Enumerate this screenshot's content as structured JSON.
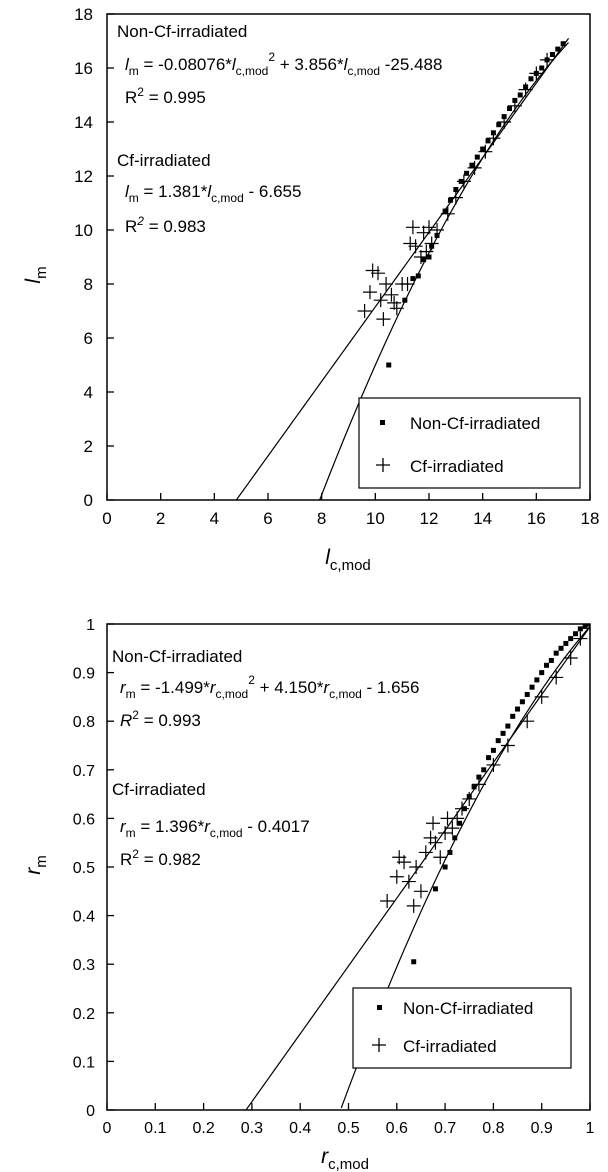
{
  "chart_data": [
    {
      "type": "scatter",
      "xlabel": {
        "main": "l",
        "sub": "c,mod"
      },
      "ylabel": {
        "main": "l",
        "sub": "m"
      },
      "xlim": [
        0,
        18
      ],
      "ylim": [
        0,
        18
      ],
      "xticks": [
        0,
        2,
        4,
        6,
        8,
        10,
        12,
        14,
        16,
        18
      ],
      "yticks": [
        0,
        2,
        4,
        6,
        8,
        10,
        12,
        14,
        16,
        18
      ],
      "xtick_labels": [
        "0",
        "2",
        "4",
        "6",
        "8",
        "10",
        "12",
        "14",
        "16",
        "18"
      ],
      "ytick_labels": [
        "0",
        "2",
        "4",
        "6",
        "8",
        "10",
        "12",
        "14",
        "16",
        "18"
      ],
      "grid": false,
      "legend": {
        "position": "bottom-right",
        "entries": [
          "Non-Cf-irradiated",
          "Cf-irradiated"
        ]
      },
      "annotations": {
        "group1_title": "Non-Cf-irradiated",
        "group1_eq_a": "l",
        "group1_eq_a_sub": "m",
        "group1_eq_b": " = -0.08076*",
        "group1_eq_c": "l",
        "group1_eq_c_sub": "c,mod",
        "group1_eq_d": "2",
        "group1_eq_e": " + 3.856*",
        "group1_eq_f": "l",
        "group1_eq_f_sub": "c,mod",
        "group1_eq_g": " -25.488",
        "group1_r2": "R",
        "group1_r2_sup": "2",
        "group1_r2_val": " = 0.995",
        "group2_title": "Cf-irradiated",
        "group2_eq_a": "l",
        "group2_eq_a_sub": "m",
        "group2_eq_b": " = 1.381*",
        "group2_eq_c": "l",
        "group2_eq_c_sub": "c,mod",
        "group2_eq_d": " - 6.655",
        "group2_r2": "R",
        "group2_r2_sup": "2",
        "group2_r2_val": " = 0.983"
      },
      "fit_lines": [
        {
          "series": "Non-Cf-irradiated",
          "model": "quadratic",
          "coefficients": [
            -0.08076,
            3.856,
            -25.488
          ],
          "x_range": [
            7.9,
            17.2
          ]
        },
        {
          "series": "Cf-irradiated",
          "model": "linear",
          "coefficients": [
            1.381,
            -6.655
          ],
          "x_range": [
            4.8,
            17.2
          ]
        }
      ],
      "series": [
        {
          "name": "Non-Cf-irradiated",
          "marker": "square",
          "points": [
            [
              10.5,
              5.0
            ],
            [
              11.1,
              7.4
            ],
            [
              11.4,
              8.2
            ],
            [
              11.6,
              8.3
            ],
            [
              11.8,
              8.9
            ],
            [
              12.0,
              9.0
            ],
            [
              12.1,
              9.4
            ],
            [
              12.3,
              9.8
            ],
            [
              12.6,
              10.7
            ],
            [
              12.8,
              11.1
            ],
            [
              13.0,
              11.5
            ],
            [
              13.2,
              11.8
            ],
            [
              13.4,
              12.1
            ],
            [
              13.6,
              12.4
            ],
            [
              13.8,
              12.7
            ],
            [
              14.0,
              13.0
            ],
            [
              14.2,
              13.3
            ],
            [
              14.4,
              13.6
            ],
            [
              14.6,
              13.9
            ],
            [
              14.8,
              14.2
            ],
            [
              15.0,
              14.5
            ],
            [
              15.2,
              14.8
            ],
            [
              15.4,
              15.0
            ],
            [
              15.6,
              15.3
            ],
            [
              15.8,
              15.6
            ],
            [
              16.0,
              15.8
            ],
            [
              16.2,
              16.0
            ],
            [
              16.4,
              16.3
            ],
            [
              16.6,
              16.5
            ],
            [
              16.8,
              16.7
            ],
            [
              17.0,
              16.9
            ]
          ]
        },
        {
          "name": "Cf-irradiated",
          "marker": "plus",
          "points": [
            [
              9.6,
              7.0
            ],
            [
              9.8,
              7.7
            ],
            [
              9.9,
              8.5
            ],
            [
              10.1,
              8.4
            ],
            [
              10.2,
              7.4
            ],
            [
              10.3,
              6.7
            ],
            [
              10.4,
              8.0
            ],
            [
              10.6,
              7.6
            ],
            [
              10.7,
              7.3
            ],
            [
              10.8,
              7.1
            ],
            [
              11.0,
              8.0
            ],
            [
              11.2,
              8.0
            ],
            [
              11.3,
              9.5
            ],
            [
              11.4,
              10.1
            ],
            [
              11.5,
              9.4
            ],
            [
              11.7,
              9.0
            ],
            [
              11.8,
              9.9
            ],
            [
              11.9,
              9.2
            ],
            [
              12.0,
              10.1
            ],
            [
              12.1,
              9.5
            ],
            [
              12.3,
              10.0
            ],
            [
              12.7,
              10.6
            ],
            [
              13.0,
              11.2
            ],
            [
              13.3,
              11.8
            ],
            [
              13.7,
              12.3
            ],
            [
              14.1,
              12.9
            ],
            [
              14.4,
              13.4
            ],
            [
              14.8,
              14.0
            ],
            [
              15.2,
              14.6
            ],
            [
              15.6,
              15.2
            ],
            [
              16.0,
              15.8
            ],
            [
              16.4,
              16.3
            ]
          ]
        }
      ]
    },
    {
      "type": "scatter",
      "xlabel": {
        "main": "r",
        "sub": "c,mod"
      },
      "ylabel": {
        "main": "r",
        "sub": "m"
      },
      "xlim": [
        0,
        1
      ],
      "ylim": [
        0,
        1
      ],
      "xticks": [
        0,
        0.1,
        0.2,
        0.3,
        0.4,
        0.5,
        0.6,
        0.7,
        0.8,
        0.9,
        1
      ],
      "yticks": [
        0,
        0.1,
        0.2,
        0.3,
        0.4,
        0.5,
        0.6,
        0.7,
        0.8,
        0.9,
        1
      ],
      "xtick_labels": [
        "0",
        "0.1",
        "0.2",
        "0.3",
        "0.4",
        "0.5",
        "0.6",
        "0.7",
        "0.8",
        "0.9",
        "1"
      ],
      "ytick_labels": [
        "0",
        "0.1",
        "0.2",
        "0.3",
        "0.4",
        "0.5",
        "0.6",
        "0.7",
        "0.8",
        "0.9",
        "1"
      ],
      "grid": false,
      "legend": {
        "position": "bottom-right",
        "entries": [
          "Non-Cf-irradiated",
          "Cf-irradiated"
        ]
      },
      "annotations": {
        "group1_title": "Non-Cf-irradiated",
        "group1_eq_a": "r",
        "group1_eq_a_sub": "m",
        "group1_eq_b": " = -1.499*",
        "group1_eq_c": "r",
        "group1_eq_c_sub": "c,mod",
        "group1_eq_d": "2",
        "group1_eq_e": " + 4.150*",
        "group1_eq_f": "r",
        "group1_eq_f_sub": "c,mod",
        "group1_eq_g": " - 1.656",
        "group1_r2": "R",
        "group1_r2_sup": "2",
        "group1_r2_val": " = 0.993",
        "group2_title": "Cf-irradiated",
        "group2_eq_a": "r",
        "group2_eq_a_sub": "m",
        "group2_eq_b": " = 1.396*",
        "group2_eq_c": "r",
        "group2_eq_c_sub": "c,mod",
        "group2_eq_d": " - 0.4017",
        "group2_r2": "R",
        "group2_r2_sup": "2",
        "group2_r2_val": " = 0.982"
      },
      "fit_lines": [
        {
          "series": "Non-Cf-irradiated",
          "model": "quadratic",
          "coefficients": [
            -1.499,
            4.15,
            -1.656
          ],
          "x_range": [
            0.485,
            1.01
          ]
        },
        {
          "series": "Cf-irradiated",
          "model": "linear",
          "coefficients": [
            1.396,
            -0.4017
          ],
          "x_range": [
            0.288,
            1.01
          ]
        }
      ],
      "series": [
        {
          "name": "Non-Cf-irradiated",
          "marker": "square",
          "points": [
            [
              0.635,
              0.305
            ],
            [
              0.68,
              0.455
            ],
            [
              0.7,
              0.5
            ],
            [
              0.71,
              0.53
            ],
            [
              0.72,
              0.56
            ],
            [
              0.73,
              0.59
            ],
            [
              0.74,
              0.62
            ],
            [
              0.75,
              0.645
            ],
            [
              0.76,
              0.665
            ],
            [
              0.77,
              0.685
            ],
            [
              0.78,
              0.7
            ],
            [
              0.79,
              0.725
            ],
            [
              0.8,
              0.74
            ],
            [
              0.81,
              0.76
            ],
            [
              0.82,
              0.775
            ],
            [
              0.83,
              0.79
            ],
            [
              0.84,
              0.81
            ],
            [
              0.85,
              0.825
            ],
            [
              0.86,
              0.84
            ],
            [
              0.87,
              0.855
            ],
            [
              0.88,
              0.87
            ],
            [
              0.89,
              0.885
            ],
            [
              0.9,
              0.9
            ],
            [
              0.91,
              0.915
            ],
            [
              0.92,
              0.925
            ],
            [
              0.93,
              0.94
            ],
            [
              0.94,
              0.95
            ],
            [
              0.95,
              0.96
            ],
            [
              0.96,
              0.97
            ],
            [
              0.97,
              0.98
            ],
            [
              0.98,
              0.99
            ],
            [
              0.99,
              0.995
            ],
            [
              1.0,
              1.0
            ]
          ]
        },
        {
          "name": "Cf-irradiated",
          "marker": "plus",
          "points": [
            [
              0.58,
              0.43
            ],
            [
              0.6,
              0.48
            ],
            [
              0.605,
              0.52
            ],
            [
              0.615,
              0.51
            ],
            [
              0.625,
              0.47
            ],
            [
              0.635,
              0.42
            ],
            [
              0.64,
              0.5
            ],
            [
              0.65,
              0.45
            ],
            [
              0.66,
              0.53
            ],
            [
              0.67,
              0.56
            ],
            [
              0.675,
              0.59
            ],
            [
              0.68,
              0.55
            ],
            [
              0.69,
              0.52
            ],
            [
              0.7,
              0.57
            ],
            [
              0.705,
              0.6
            ],
            [
              0.715,
              0.58
            ],
            [
              0.725,
              0.6
            ],
            [
              0.735,
              0.62
            ],
            [
              0.75,
              0.64
            ],
            [
              0.77,
              0.67
            ],
            [
              0.8,
              0.71
            ],
            [
              0.83,
              0.75
            ],
            [
              0.87,
              0.8
            ],
            [
              0.9,
              0.85
            ],
            [
              0.93,
              0.89
            ],
            [
              0.96,
              0.93
            ],
            [
              0.98,
              0.97
            ],
            [
              1.0,
              1.0
            ],
            [
              1.01,
              1.01
            ]
          ]
        }
      ]
    }
  ]
}
